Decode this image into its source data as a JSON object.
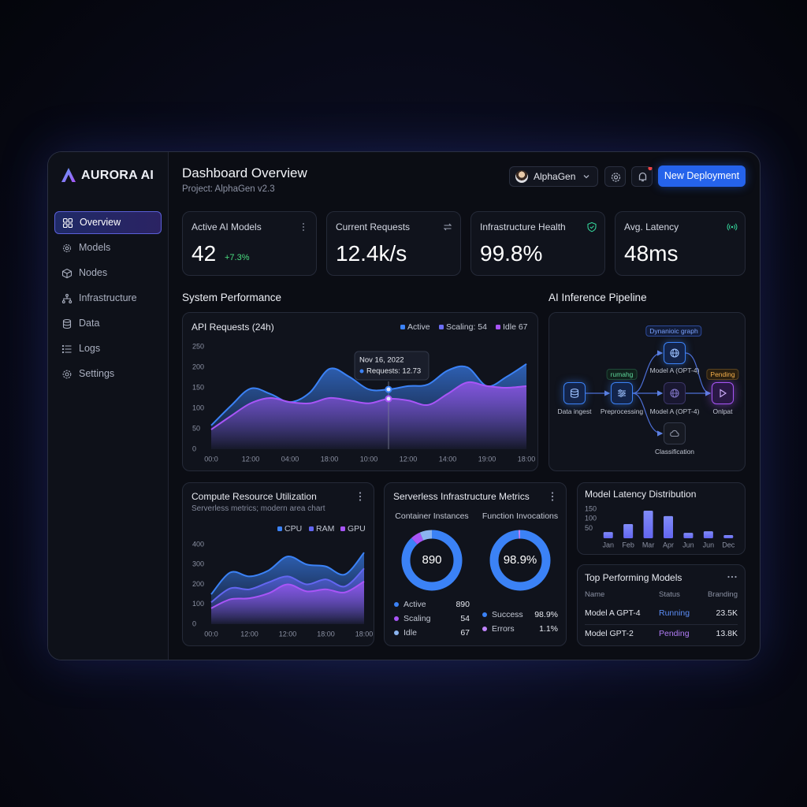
{
  "sidebar": {
    "brand": "AURORA AI",
    "nav": [
      "Overview",
      "Models",
      "Nodes",
      "Infrastructure",
      "Data",
      "Logs",
      "Settings"
    ]
  },
  "header": {
    "title": "Dashboard Overview",
    "subtitle": "Project: AlphaGen v2.3",
    "user": "AlphaGen",
    "button": "New Deployment"
  },
  "kpis": [
    {
      "label": "Active AI Models",
      "value": "42",
      "delta": "+7.3%"
    },
    {
      "label": "Current Requests",
      "value": "12.4k/s"
    },
    {
      "label": "Infrastructure Health",
      "value": "99.8%"
    },
    {
      "label": "Avg. Latency",
      "value": "48ms"
    }
  ],
  "sections": {
    "performance": "System Performance",
    "pipeline": "AI Inference Pipeline"
  },
  "api_chart": {
    "type": "area",
    "title": "API Requests (24h)",
    "categories": [
      "00:0",
      null,
      "12:00",
      null,
      "04:00",
      null,
      "18:00",
      null,
      "10:00",
      null,
      "12:00",
      null,
      "14:00",
      null,
      "19:00",
      null,
      "18:00"
    ],
    "series": [
      {
        "name": "Active",
        "color": "#3b82f6",
        "values": [
          58,
          106,
          148,
          135,
          115,
          138,
          196,
          177,
          146,
          146,
          154,
          158,
          192,
          200,
          154,
          177,
          208
        ]
      },
      {
        "name": "Idle 67",
        "color": "#a855f7",
        "values": [
          48,
          81,
          112,
          125,
          115,
          112,
          125,
          119,
          112,
          123,
          119,
          108,
          135,
          163,
          154,
          150,
          154
        ]
      }
    ],
    "legend_extra": {
      "name": "Scaling: 54",
      "color": "#6b6ef5"
    },
    "ylim": [
      0,
      250
    ],
    "yticks": [
      0,
      50,
      100,
      150,
      200,
      250
    ],
    "tooltip": {
      "date": "Nov 16, 2022",
      "text": "Requests: 12.73"
    }
  },
  "pipeline": {
    "badges": [
      "Dynanioic graph",
      "rumahg",
      "Pending"
    ],
    "nodes": [
      "Data ingest",
      "Preprocessing",
      "Model A (OPT-4)",
      "Model A (OPT-4)",
      "Classification",
      "Onlpat"
    ]
  },
  "compute_chart": {
    "type": "area",
    "title": "Compute Resource Utilization",
    "subtitle": "Serverless metrics; modern area chart",
    "categories": [
      "00:0",
      null,
      "12:00",
      null,
      "12:00",
      null,
      "18:00",
      null,
      "18:00"
    ],
    "series": [
      {
        "name": "CPU",
        "color": "#3b82f6",
        "values": [
          150,
          260,
          240,
          270,
          340,
          300,
          290,
          250,
          360
        ]
      },
      {
        "name": "RAM",
        "color": "#6366f1",
        "values": [
          110,
          180,
          175,
          210,
          240,
          200,
          225,
          190,
          280
        ]
      },
      {
        "name": "GPU",
        "color": "#a855f7",
        "values": [
          80,
          125,
          130,
          155,
          200,
          165,
          175,
          160,
          215
        ]
      }
    ],
    "ylim": [
      0,
      400
    ],
    "yticks": [
      0,
      100,
      200,
      300,
      400
    ]
  },
  "serverless": {
    "title": "Serverless Infrastructure Metrics",
    "donuts": [
      {
        "type": "donut",
        "title": "Container Instances",
        "categories": [
          "Active",
          "Scaling",
          "Idle"
        ],
        "values": [
          890,
          54,
          67
        ],
        "colors": [
          "#3b82f6",
          "#a855f7",
          "#8bb4f0"
        ]
      },
      {
        "type": "donut",
        "title": "Function Invocations",
        "categories": [
          "Success",
          "Errors"
        ],
        "values": [
          98.9,
          1.1
        ],
        "value_labels": [
          "98.9%",
          "1.1%"
        ],
        "colors": [
          "#3b82f6",
          "#c084fc"
        ]
      }
    ]
  },
  "latency_chart": {
    "type": "bar",
    "title": "Model Latency Distribution",
    "categories": [
      "Jan",
      "Feb",
      "Mar",
      "Apr",
      "Jun",
      "Jun",
      "Dec"
    ],
    "values": [
      32,
      73,
      142,
      114,
      28,
      36,
      16
    ],
    "color": "#6366f1",
    "ylim": [
      0,
      160
    ],
    "yticks": [
      50,
      100,
      150
    ]
  },
  "top_models": {
    "title": "Top Performing Models",
    "columns": [
      "Name",
      "Status",
      "Branding"
    ],
    "rows": [
      [
        "Model A GPT-4",
        "Running",
        "23.5K"
      ],
      [
        "Model GPT-2",
        "Pending",
        "13.8K"
      ]
    ]
  }
}
